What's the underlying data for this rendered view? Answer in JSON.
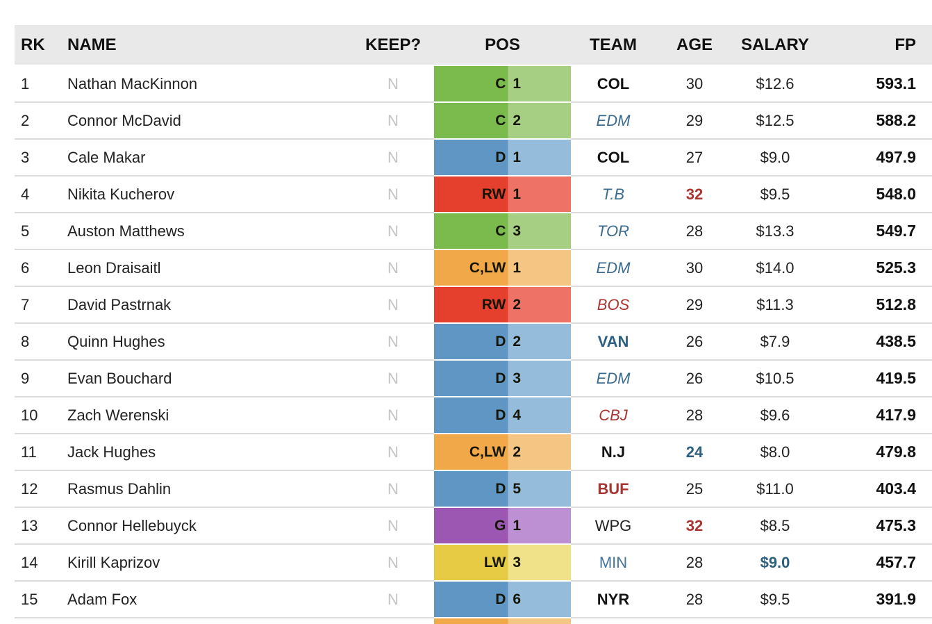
{
  "header": {
    "columns": [
      {
        "key": "rk",
        "label": "RK"
      },
      {
        "key": "name",
        "label": "NAME"
      },
      {
        "key": "keep",
        "label": "KEEP?"
      },
      {
        "key": "pos",
        "label": "POS"
      },
      {
        "key": "team",
        "label": "TEAM"
      },
      {
        "key": "age",
        "label": "AGE"
      },
      {
        "key": "salary",
        "label": "SALARY"
      },
      {
        "key": "fp",
        "label": "FP"
      }
    ]
  },
  "colors": {
    "header_bg": "#e9e9e9",
    "row_separator": "#dcdcdc",
    "keep_gray": "#c4c4c4",
    "teal": "#3a6b8e",
    "bold_teal": "#2d5f7f",
    "dark_red": "#a93531"
  },
  "pos_palettes": {
    "C": {
      "dark": "#7bba4c",
      "light": "#a6cf83"
    },
    "D": {
      "dark": "#6096c3",
      "light": "#96bcdb"
    },
    "RW": {
      "dark": "#e5402e",
      "light": "#ee7366"
    },
    "CLW": {
      "dark": "#f0a848",
      "light": "#f5c583"
    },
    "G": {
      "dark": "#9b57b1",
      "light": "#bd8fd3"
    },
    "LW": {
      "dark": "#e7cb44",
      "light": "#f0e288"
    }
  },
  "rows": [
    {
      "rk": "1",
      "name": "Nathan MacKinnon",
      "keep": "N",
      "pos": "C",
      "pos_rank": "1",
      "palette": "C",
      "team": "COL",
      "team_style": "bold-black",
      "age": "30",
      "age_style": "normal",
      "salary": "$12.6",
      "salary_style": "normal",
      "fp": "593.1"
    },
    {
      "rk": "2",
      "name": "Connor McDavid",
      "keep": "N",
      "pos": "C",
      "pos_rank": "2",
      "palette": "C",
      "team": "EDM",
      "team_style": "italic-teal",
      "age": "29",
      "age_style": "normal",
      "salary": "$12.5",
      "salary_style": "normal",
      "fp": "588.2"
    },
    {
      "rk": "3",
      "name": "Cale Makar",
      "keep": "N",
      "pos": "D",
      "pos_rank": "1",
      "palette": "D",
      "team": "COL",
      "team_style": "bold-black",
      "age": "27",
      "age_style": "normal",
      "salary": "$9.0",
      "salary_style": "normal",
      "fp": "497.9"
    },
    {
      "rk": "4",
      "name": "Nikita Kucherov",
      "keep": "N",
      "pos": "RW",
      "pos_rank": "1",
      "palette": "RW",
      "team": "T.B",
      "team_style": "italic-teal",
      "age": "32",
      "age_style": "bold-red",
      "salary": "$9.5",
      "salary_style": "normal",
      "fp": "548.0"
    },
    {
      "rk": "5",
      "name": "Auston Matthews",
      "keep": "N",
      "pos": "C",
      "pos_rank": "3",
      "palette": "C",
      "team": "TOR",
      "team_style": "italic-teal",
      "age": "28",
      "age_style": "normal",
      "salary": "$13.3",
      "salary_style": "normal",
      "fp": "549.7"
    },
    {
      "rk": "6",
      "name": "Leon Draisaitl",
      "keep": "N",
      "pos": "C,LW",
      "pos_rank": "1",
      "palette": "CLW",
      "team": "EDM",
      "team_style": "italic-teal",
      "age": "30",
      "age_style": "normal",
      "salary": "$14.0",
      "salary_style": "normal",
      "fp": "525.3"
    },
    {
      "rk": "7",
      "name": "David Pastrnak",
      "keep": "N",
      "pos": "RW",
      "pos_rank": "2",
      "palette": "RW",
      "team": "BOS",
      "team_style": "italic-red",
      "age": "29",
      "age_style": "normal",
      "salary": "$11.3",
      "salary_style": "normal",
      "fp": "512.8"
    },
    {
      "rk": "8",
      "name": "Quinn Hughes",
      "keep": "N",
      "pos": "D",
      "pos_rank": "2",
      "palette": "D",
      "team": "VAN",
      "team_style": "bold-teal",
      "age": "26",
      "age_style": "normal",
      "salary": "$7.9",
      "salary_style": "normal",
      "fp": "438.5"
    },
    {
      "rk": "9",
      "name": "Evan Bouchard",
      "keep": "N",
      "pos": "D",
      "pos_rank": "3",
      "palette": "D",
      "team": "EDM",
      "team_style": "italic-teal",
      "age": "26",
      "age_style": "normal",
      "salary": "$10.5",
      "salary_style": "normal",
      "fp": "419.5"
    },
    {
      "rk": "10",
      "name": "Zach Werenski",
      "keep": "N",
      "pos": "D",
      "pos_rank": "4",
      "palette": "D",
      "team": "CBJ",
      "team_style": "italic-red",
      "age": "28",
      "age_style": "normal",
      "salary": "$9.6",
      "salary_style": "normal",
      "fp": "417.9"
    },
    {
      "rk": "11",
      "name": "Jack Hughes",
      "keep": "N",
      "pos": "C,LW",
      "pos_rank": "2",
      "palette": "CLW",
      "team": "N.J",
      "team_style": "bold-black",
      "age": "24",
      "age_style": "bold-teal",
      "salary": "$8.0",
      "salary_style": "normal",
      "fp": "479.8"
    },
    {
      "rk": "12",
      "name": "Rasmus Dahlin",
      "keep": "N",
      "pos": "D",
      "pos_rank": "5",
      "palette": "D",
      "team": "BUF",
      "team_style": "bold-red",
      "age": "25",
      "age_style": "normal",
      "salary": "$11.0",
      "salary_style": "normal",
      "fp": "403.4"
    },
    {
      "rk": "13",
      "name": "Connor Hellebuyck",
      "keep": "N",
      "pos": "G",
      "pos_rank": "1",
      "palette": "G",
      "team": "WPG",
      "team_style": "normal-black",
      "age": "32",
      "age_style": "bold-red",
      "salary": "$8.5",
      "salary_style": "normal",
      "fp": "475.3"
    },
    {
      "rk": "14",
      "name": "Kirill Kaprizov",
      "keep": "N",
      "pos": "LW",
      "pos_rank": "3",
      "palette": "LW",
      "team": "MIN",
      "team_style": "normal-teal",
      "age": "28",
      "age_style": "normal",
      "salary": "$9.0",
      "salary_style": "bold-teal",
      "fp": "457.7"
    },
    {
      "rk": "15",
      "name": "Adam Fox",
      "keep": "N",
      "pos": "D",
      "pos_rank": "6",
      "palette": "D",
      "team": "NYR",
      "team_style": "bold-black",
      "age": "28",
      "age_style": "normal",
      "salary": "$9.5",
      "salary_style": "normal",
      "fp": "391.9"
    }
  ],
  "partial_next_row": {
    "palette": "CLW"
  }
}
